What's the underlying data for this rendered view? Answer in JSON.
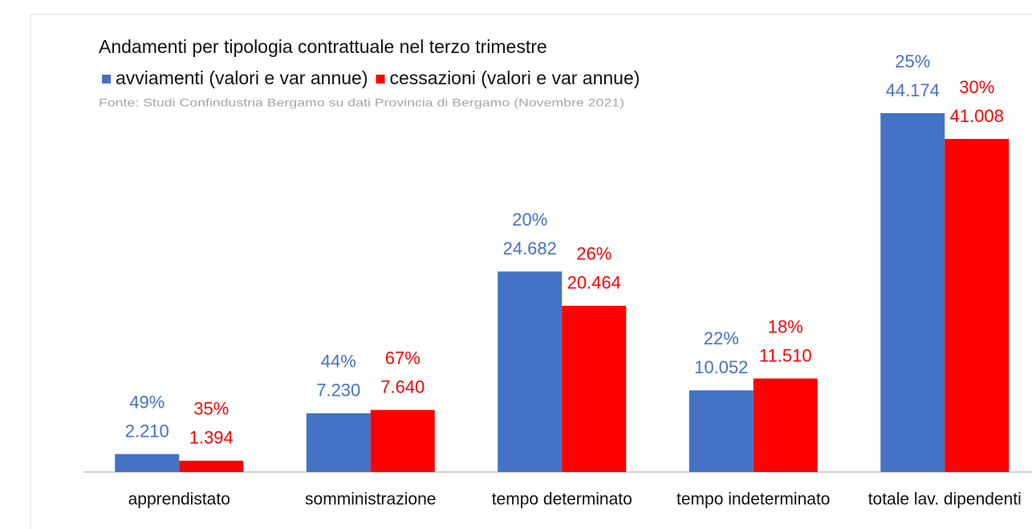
{
  "chart_data": {
    "type": "bar",
    "title": "Andamenti per tipologia contrattuale nel terzo trimestre",
    "subtitle": "Fonte: Studi Confindustria Bergamo su dati Provincia di Bergamo (Novembre 2021)",
    "categories": [
      "apprendistato",
      "somministrazione",
      "tempo determinato",
      "tempo indeterminato",
      "totale lav. dipendenti"
    ],
    "series": [
      {
        "name": "avviamenti (valori e var annue)",
        "color": "#4472c4",
        "values": [
          2210,
          7230,
          24682,
          10052,
          44174
        ],
        "value_labels": [
          "2.210",
          "7.230",
          "24.682",
          "10.052",
          "44.174"
        ],
        "changes": [
          49,
          44,
          20,
          22,
          25
        ],
        "change_labels": [
          "49%",
          "44%",
          "20%",
          "22%",
          "25%"
        ]
      },
      {
        "name": "cessazioni (valori e var annue)",
        "color": "#ff0000",
        "values": [
          1394,
          7640,
          20464,
          11510,
          41008
        ],
        "value_labels": [
          "1.394",
          "7.640",
          "20.464",
          "11.510",
          "41.008"
        ],
        "changes": [
          35,
          67,
          26,
          18,
          30
        ],
        "change_labels": [
          "35%",
          "67%",
          "26%",
          "18%",
          "30%"
        ]
      }
    ]
  }
}
